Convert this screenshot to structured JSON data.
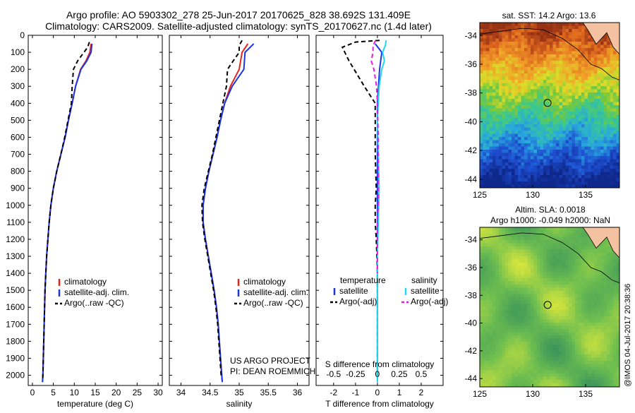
{
  "header": {
    "line1": "Argo profile: AO 5903302_278 25-Jun-2017 20170625_828 38.692S 131.409E",
    "line2": "Climatology: CARS2009. Satellite-adjusted climatology: synTS_20170627.nc (1.4d later)"
  },
  "colors": {
    "climatology": "#e8251a",
    "satellite": "#1a36e8",
    "argo": "#000000",
    "satellite_light": "#22d8f0",
    "argo_adj": "#e020e0"
  },
  "credits": {
    "line1": "US ARGO PROJECT",
    "line2": "PI: DEAN ROEMMICH"
  },
  "stamp": "@IMOS 04-Jul-2017 20:38:36",
  "chart_data": [
    {
      "type": "line",
      "xlabel": "temperature (deg C)",
      "xlim": [
        -1,
        31
      ],
      "ylim": [
        2060,
        0
      ],
      "x_ticks": [
        0,
        5,
        10,
        15,
        20,
        25,
        30
      ],
      "y_ticks": [
        0,
        100,
        200,
        300,
        400,
        500,
        600,
        700,
        800,
        900,
        1000,
        1100,
        1200,
        1300,
        1400,
        1500,
        1600,
        1700,
        1800,
        1900,
        2000
      ],
      "legend": [
        "climatology",
        "satellite-adj. clim.",
        "Argo(..raw -QC)"
      ],
      "series": [
        {
          "name": "climatology",
          "style": "solid",
          "color": "climatology",
          "points": [
            [
              14.0,
              50
            ],
            [
              13.7,
              100
            ],
            [
              12.8,
              150
            ],
            [
              11.5,
              200
            ],
            [
              10.3,
              300
            ],
            [
              9.5,
              400
            ],
            [
              8.6,
              500
            ],
            [
              7.8,
              600
            ],
            [
              6.8,
              700
            ],
            [
              5.8,
              800
            ],
            [
              5.0,
              900
            ],
            [
              4.4,
              1000
            ],
            [
              4.0,
              1100
            ],
            [
              3.7,
              1200
            ],
            [
              3.4,
              1300
            ],
            [
              3.2,
              1400
            ],
            [
              3.0,
              1500
            ],
            [
              2.9,
              1600
            ],
            [
              2.8,
              1700
            ],
            [
              2.7,
              1800
            ],
            [
              2.6,
              1900
            ],
            [
              2.5,
              2000
            ],
            [
              2.4,
              2040
            ]
          ]
        },
        {
          "name": "satellite-adj. clim.",
          "style": "solid",
          "color": "satellite",
          "points": [
            [
              14.2,
              50
            ],
            [
              14.0,
              100
            ],
            [
              13.0,
              150
            ],
            [
              11.6,
              200
            ],
            [
              10.3,
              300
            ],
            [
              9.5,
              400
            ],
            [
              8.6,
              500
            ],
            [
              7.8,
              600
            ],
            [
              6.8,
              700
            ],
            [
              5.8,
              800
            ],
            [
              5.0,
              900
            ],
            [
              4.4,
              1000
            ],
            [
              4.0,
              1100
            ],
            [
              3.7,
              1200
            ],
            [
              3.4,
              1300
            ],
            [
              3.2,
              1400
            ],
            [
              3.0,
              1500
            ],
            [
              2.9,
              1600
            ],
            [
              2.8,
              1700
            ],
            [
              2.7,
              1800
            ],
            [
              2.6,
              1900
            ],
            [
              2.5,
              2000
            ],
            [
              2.4,
              2040
            ]
          ]
        },
        {
          "name": "Argo(..raw -QC)",
          "style": "dashed",
          "color": "argo",
          "points": [
            [
              13.6,
              40
            ],
            [
              13.2,
              70
            ],
            [
              12.3,
              100
            ],
            [
              10.8,
              150
            ],
            [
              9.8,
              200
            ],
            [
              9.5,
              300
            ],
            [
              9.3,
              400
            ],
            [
              8.5,
              500
            ],
            [
              7.7,
              600
            ],
            [
              6.8,
              700
            ],
            [
              5.8,
              800
            ],
            [
              5.0,
              900
            ],
            [
              4.4,
              1000
            ],
            [
              4.0,
              1100
            ],
            [
              3.7,
              1200
            ],
            [
              3.4,
              1300
            ],
            [
              3.2,
              1400
            ],
            [
              3.0,
              1500
            ],
            [
              2.9,
              1600
            ],
            [
              2.8,
              1700
            ],
            [
              2.7,
              1800
            ],
            [
              2.6,
              1900
            ],
            [
              2.5,
              2000
            ],
            [
              2.45,
              2020
            ]
          ]
        }
      ]
    },
    {
      "type": "line",
      "xlabel": "salinity",
      "xlim": [
        33.8,
        36.2
      ],
      "ylim": [
        2060,
        0
      ],
      "x_ticks": [
        34,
        34.5,
        35,
        35.5,
        36
      ],
      "legend": [
        "climatology",
        "satellite-adj. clim.",
        "Argo(..raw -QC)"
      ],
      "series": [
        {
          "name": "climatology",
          "style": "solid",
          "color": "climatology",
          "points": [
            [
              35.15,
              50
            ],
            [
              35.05,
              100
            ],
            [
              35.0,
              200
            ],
            [
              34.85,
              300
            ],
            [
              34.75,
              400
            ],
            [
              34.68,
              500
            ],
            [
              34.62,
              600
            ],
            [
              34.55,
              700
            ],
            [
              34.48,
              800
            ],
            [
              34.42,
              900
            ],
            [
              34.38,
              1000
            ],
            [
              34.38,
              1100
            ],
            [
              34.42,
              1200
            ],
            [
              34.47,
              1300
            ],
            [
              34.52,
              1400
            ],
            [
              34.57,
              1500
            ],
            [
              34.61,
              1600
            ],
            [
              34.64,
              1700
            ],
            [
              34.66,
              1800
            ],
            [
              34.68,
              1900
            ],
            [
              34.7,
              2000
            ],
            [
              34.71,
              2040
            ]
          ]
        },
        {
          "name": "satellite-adj. clim.",
          "style": "solid",
          "color": "satellite",
          "points": [
            [
              35.25,
              50
            ],
            [
              35.1,
              100
            ],
            [
              35.08,
              200
            ],
            [
              34.88,
              300
            ],
            [
              34.75,
              400
            ],
            [
              34.68,
              500
            ],
            [
              34.62,
              600
            ],
            [
              34.55,
              700
            ],
            [
              34.48,
              800
            ],
            [
              34.42,
              900
            ],
            [
              34.38,
              1000
            ],
            [
              34.38,
              1100
            ],
            [
              34.42,
              1200
            ],
            [
              34.47,
              1300
            ],
            [
              34.52,
              1400
            ],
            [
              34.57,
              1500
            ],
            [
              34.61,
              1600
            ],
            [
              34.64,
              1700
            ],
            [
              34.66,
              1800
            ],
            [
              34.68,
              1900
            ],
            [
              34.7,
              2000
            ],
            [
              34.71,
              2040
            ]
          ]
        },
        {
          "name": "Argo(..raw -QC)",
          "style": "dashed",
          "color": "argo",
          "points": [
            [
              35.05,
              30
            ],
            [
              35.0,
              60
            ],
            [
              35.0,
              100
            ],
            [
              34.9,
              150
            ],
            [
              34.8,
              200
            ],
            [
              34.78,
              300
            ],
            [
              34.72,
              400
            ],
            [
              34.66,
              500
            ],
            [
              34.6,
              600
            ],
            [
              34.54,
              700
            ],
            [
              34.47,
              800
            ],
            [
              34.4,
              900
            ],
            [
              34.36,
              1000
            ],
            [
              34.37,
              1100
            ],
            [
              34.41,
              1200
            ],
            [
              34.46,
              1300
            ],
            [
              34.51,
              1400
            ],
            [
              34.56,
              1500
            ],
            [
              34.6,
              1600
            ],
            [
              34.63,
              1700
            ],
            [
              34.65,
              1800
            ],
            [
              34.67,
              1900
            ],
            [
              34.69,
              2000
            ]
          ]
        }
      ]
    },
    {
      "type": "line",
      "xlabel": "T difference from climatology",
      "xlabel_top": "S difference from climatology",
      "xlim": [
        -2.8,
        3.0
      ],
      "xlim_top": [
        -0.7,
        0.75
      ],
      "ylim": [
        2060,
        0
      ],
      "x_ticks": [
        -2,
        -1,
        0,
        1,
        2
      ],
      "x_ticks_top": [
        "-0.5",
        "-0.25",
        "0",
        "0.25",
        "0.5"
      ],
      "x_ticks_top_values": [
        -0.5,
        -0.25,
        0,
        0.25,
        0.5
      ],
      "legend_titles": [
        "temperature",
        "salinity"
      ],
      "legend": [
        "satellite",
        "Argo(-adj)",
        "satellite",
        "Argo(-adj)"
      ],
      "series": [
        {
          "name": "satellite",
          "group": "temperature",
          "style": "solid",
          "color": "satellite",
          "points": [
            [
              -0.1,
              50
            ],
            [
              0.2,
              100
            ],
            [
              0.1,
              200
            ],
            [
              0.05,
              300
            ],
            [
              0,
              400
            ],
            [
              0,
              600
            ],
            [
              0,
              800
            ],
            [
              0,
              1000
            ],
            [
              0,
              1200
            ],
            [
              0,
              1400
            ],
            [
              0,
              1600
            ],
            [
              0,
              1800
            ],
            [
              0,
              2040
            ]
          ]
        },
        {
          "name": "Argo(-adj)",
          "group": "temperature",
          "style": "dashed",
          "color": "argo",
          "points": [
            [
              0.1,
              30
            ],
            [
              -1.0,
              40
            ],
            [
              -1.6,
              70
            ],
            [
              -1.3,
              150
            ],
            [
              -0.6,
              300
            ],
            [
              -0.1,
              400
            ],
            [
              -0.1,
              500
            ],
            [
              -0.1,
              700
            ],
            [
              -0.05,
              900
            ],
            [
              -0.1,
              1000
            ],
            [
              -0.1,
              1100
            ],
            [
              -0.05,
              1200
            ],
            [
              0,
              1400
            ],
            [
              0,
              1700
            ],
            [
              0,
              2000
            ]
          ]
        },
        {
          "name": "satellite",
          "group": "salinity",
          "style": "solid",
          "color": "satellite_light",
          "points": [
            [
              0.1,
              30
            ],
            [
              0.09,
              60
            ],
            [
              0.06,
              100
            ],
            [
              0.08,
              150
            ],
            [
              0.05,
              200
            ],
            [
              0.02,
              300
            ],
            [
              0.01,
              400
            ],
            [
              0,
              500
            ],
            [
              0.01,
              700
            ],
            [
              0.02,
              900
            ],
            [
              0.01,
              1100
            ],
            [
              0,
              1300
            ],
            [
              0,
              1600
            ],
            [
              0,
              2040
            ]
          ]
        },
        {
          "name": "Argo(-adj)",
          "group": "salinity",
          "style": "dashed",
          "color": "argo_adj",
          "points": [
            [
              -0.02,
              30
            ],
            [
              -0.05,
              60
            ],
            [
              -0.05,
              100
            ],
            [
              -0.07,
              150
            ],
            [
              -0.04,
              200
            ],
            [
              -0.01,
              300
            ],
            [
              0,
              400
            ],
            [
              0.01,
              600
            ],
            [
              0.01,
              800
            ],
            [
              0.01,
              1000
            ],
            [
              0,
              1100
            ],
            [
              0,
              1200
            ],
            [
              0,
              1400
            ]
          ]
        }
      ]
    },
    {
      "type": "heatmap",
      "title": "sat. SST: 14.2 Argo: 13.6",
      "xlim": [
        125,
        138.2
      ],
      "ylim": [
        -44.6,
        -33.1
      ],
      "x_ticks": [
        125,
        130,
        135
      ],
      "y_ticks": [
        -34,
        -36,
        -38,
        -40,
        -42,
        -44
      ],
      "marker": {
        "lon": 131.409,
        "lat": -38.692
      }
    },
    {
      "type": "heatmap",
      "title_line1": "Altim. SLA: 0.0018",
      "title_line2": "Argo h1000: -0.049 h2000: NaN",
      "xlim": [
        125,
        138.2
      ],
      "ylim": [
        -44.6,
        -33.1
      ],
      "x_ticks": [
        125,
        130,
        135
      ],
      "y_ticks": [
        -34,
        -36,
        -38,
        -40,
        -42,
        -44
      ],
      "marker": {
        "lon": 131.409,
        "lat": -38.692
      }
    }
  ]
}
